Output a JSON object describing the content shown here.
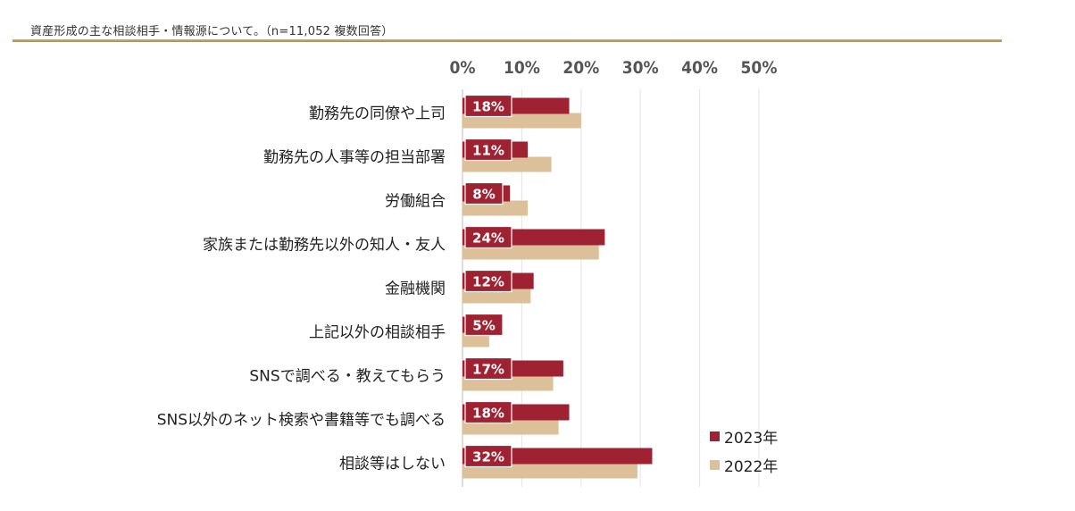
{
  "caption": "資産形成の主な相談相手・情報源について。（n=11,052 複数回答）",
  "chart_data": {
    "type": "bar",
    "orientation": "horizontal",
    "x_ticks": [
      "0%",
      "10%",
      "20%",
      "30%",
      "40%",
      "50%"
    ],
    "xlim": [
      0,
      50
    ],
    "grid": true,
    "legend_position": "bottom-right",
    "categories": [
      "勤務先の同僚や上司",
      "勤務先の人事等の担当部署",
      "労働組合",
      "家族または勤務先以外の知人・友人",
      "金融機関",
      "上記以外の相談相手",
      "SNSで調べる・教えてもらう",
      "SNS以外のネット検索や書籍等でも調べる",
      "相談等はしない"
    ],
    "series": [
      {
        "name": "2023年",
        "color": "#9e2232",
        "values": [
          18,
          11,
          8,
          24,
          12,
          5,
          17,
          18,
          32
        ],
        "labels": [
          "18%",
          "11%",
          "8%",
          "24%",
          "12%",
          "5%",
          "17%",
          "18%",
          "32%"
        ]
      },
      {
        "name": "2022年",
        "color": "#dcc09a",
        "values": [
          20,
          15,
          11,
          23,
          11.5,
          4.5,
          15.3,
          16.2,
          29.5
        ]
      }
    ]
  }
}
